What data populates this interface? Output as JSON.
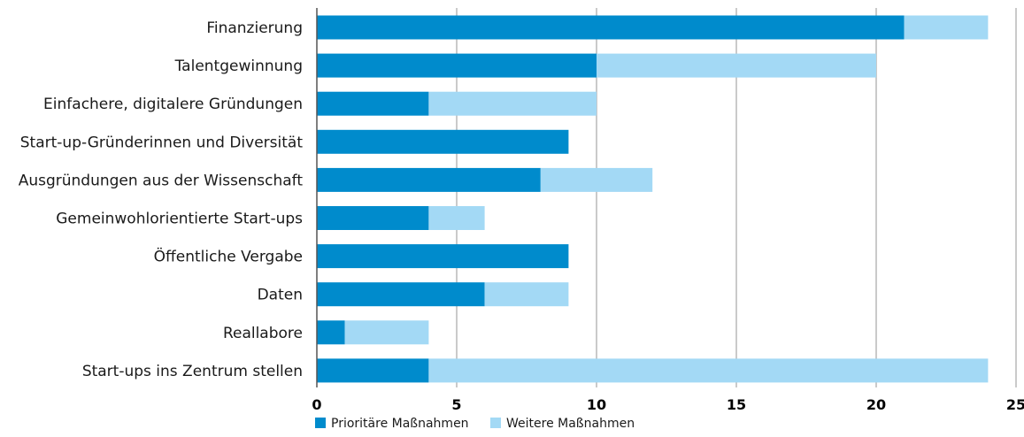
{
  "chart_data": {
    "type": "bar",
    "orientation": "horizontal",
    "stacked": true,
    "title": "",
    "xlabel": "",
    "ylabel": "",
    "categories": [
      "Finanzierung",
      "Talentgewinnung",
      "Einfachere, digitalere Gründungen",
      "Start-up-Gründerinnen und Diversität",
      "Ausgründungen aus der Wissenschaft",
      "Gemeinwohlorientierte Start-ups",
      "Öffentliche Vergabe",
      "Daten",
      "Reallabore",
      "Start-ups ins Zentrum stellen"
    ],
    "series": [
      {
        "name": "Prioritäre Maßnahmen",
        "color": "#008bcc",
        "values": [
          21,
          10,
          4,
          9,
          8,
          4,
          9,
          6,
          1,
          4
        ]
      },
      {
        "name": "Weitere Maßnahmen",
        "color": "#a3d9f5",
        "values": [
          3,
          10,
          6,
          0,
          4,
          2,
          0,
          3,
          3,
          20
        ]
      }
    ],
    "xlim": [
      0,
      25
    ],
    "xticks": [
      "0",
      "5",
      "10",
      "15",
      "20",
      "25"
    ],
    "xtick_values": [
      0,
      5,
      10,
      15,
      20,
      25
    ],
    "grid": "vertical",
    "legend_position": "bottom"
  }
}
